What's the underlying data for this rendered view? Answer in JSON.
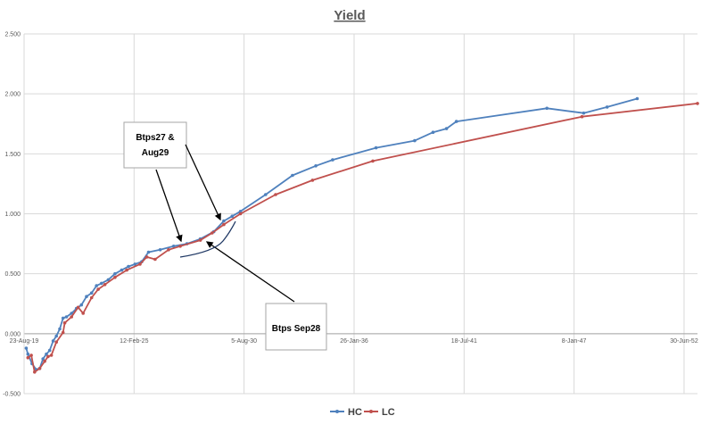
{
  "chart_data": {
    "type": "line",
    "title": "Yield",
    "xlabel": "",
    "ylabel": "",
    "ylim": [
      -0.5,
      2.5
    ],
    "yticks": [
      -0.5,
      0,
      0.5,
      1,
      1.5,
      2,
      2.5
    ],
    "ytick_labels": [
      "-0.500",
      "0.000",
      "0.500",
      "1.000",
      "1.500",
      "2.000",
      "2.500"
    ],
    "xlim": [
      "2019-08-23",
      "2053-03-01"
    ],
    "xticks": [
      "2019-08-23",
      "2025-02-12",
      "2030-08-05",
      "2036-01-26",
      "2041-07-18",
      "2047-01-08",
      "2052-06-30"
    ],
    "xtick_labels": [
      "23-Aug-19",
      "12-Feb-25",
      "5-Aug-30",
      "26-Jan-36",
      "18-Jul-41",
      "8-Jan-47",
      "30-Jun-52"
    ],
    "grid": true,
    "legend_position": "bottom",
    "series": [
      {
        "name": "HC",
        "color": "#4f81bd",
        "points": [
          [
            "2019-10-01",
            -0.12
          ],
          [
            "2019-11-01",
            -0.17
          ],
          [
            "2020-01-15",
            -0.25
          ],
          [
            "2020-04-01",
            -0.3
          ],
          [
            "2020-06-01",
            -0.29
          ],
          [
            "2020-08-01",
            -0.21
          ],
          [
            "2020-10-01",
            -0.17
          ],
          [
            "2020-12-01",
            -0.14
          ],
          [
            "2021-02-01",
            -0.06
          ],
          [
            "2021-04-01",
            -0.02
          ],
          [
            "2021-06-01",
            0.04
          ],
          [
            "2021-08-01",
            0.13
          ],
          [
            "2021-10-01",
            0.14
          ],
          [
            "2022-01-01",
            0.17
          ],
          [
            "2022-04-01",
            0.21
          ],
          [
            "2022-07-01",
            0.24
          ],
          [
            "2022-10-01",
            0.31
          ],
          [
            "2023-01-01",
            0.34
          ],
          [
            "2023-04-01",
            0.4
          ],
          [
            "2023-07-01",
            0.42
          ],
          [
            "2023-11-01",
            0.45
          ],
          [
            "2024-03-01",
            0.5
          ],
          [
            "2024-07-01",
            0.53
          ],
          [
            "2024-11-01",
            0.56
          ],
          [
            "2025-03-01",
            0.58
          ],
          [
            "2025-07-01",
            0.6
          ],
          [
            "2025-11-01",
            0.68
          ],
          [
            "2026-06-01",
            0.7
          ],
          [
            "2027-02-01",
            0.73
          ],
          [
            "2027-10-01",
            0.75
          ],
          [
            "2028-06-01",
            0.79
          ],
          [
            "2029-02-01",
            0.85
          ],
          [
            "2029-08-01",
            0.94
          ],
          [
            "2030-01-01",
            0.98
          ],
          [
            "2030-06-01",
            1.02
          ],
          [
            "2031-09-01",
            1.16
          ],
          [
            "2033-01-01",
            1.32
          ],
          [
            "2034-03-01",
            1.4
          ],
          [
            "2035-01-01",
            1.45
          ],
          [
            "2037-03-01",
            1.55
          ],
          [
            "2039-02-01",
            1.61
          ],
          [
            "2040-01-01",
            1.68
          ],
          [
            "2040-09-01",
            1.71
          ],
          [
            "2041-03-01",
            1.77
          ],
          [
            "2045-09-01",
            1.88
          ],
          [
            "2047-07-01",
            1.84
          ],
          [
            "2048-09-01",
            1.89
          ],
          [
            "2050-03-01",
            1.96
          ]
        ]
      },
      {
        "name": "LC",
        "color": "#c0504d",
        "points": [
          [
            "2019-11-01",
            -0.2
          ],
          [
            "2020-01-01",
            -0.18
          ],
          [
            "2020-03-01",
            -0.32
          ],
          [
            "2020-06-01",
            -0.29
          ],
          [
            "2020-09-01",
            -0.23
          ],
          [
            "2020-11-01",
            -0.19
          ],
          [
            "2021-01-01",
            -0.18
          ],
          [
            "2021-04-01",
            -0.07
          ],
          [
            "2021-08-01",
            0.01
          ],
          [
            "2021-09-01",
            0.09
          ],
          [
            "2022-01-01",
            0.14
          ],
          [
            "2022-05-01",
            0.22
          ],
          [
            "2022-08-01",
            0.17
          ],
          [
            "2023-01-01",
            0.3
          ],
          [
            "2023-05-01",
            0.37
          ],
          [
            "2023-09-01",
            0.41
          ],
          [
            "2024-03-01",
            0.47
          ],
          [
            "2024-10-01",
            0.53
          ],
          [
            "2025-06-01",
            0.58
          ],
          [
            "2025-10-01",
            0.64
          ],
          [
            "2026-03-01",
            0.62
          ],
          [
            "2026-11-01",
            0.7
          ],
          [
            "2027-06-01",
            0.73
          ],
          [
            "2028-06-01",
            0.78
          ],
          [
            "2029-01-01",
            0.84
          ],
          [
            "2029-08-01",
            0.91
          ],
          [
            "2030-06-01",
            1.0
          ],
          [
            "2032-03-01",
            1.16
          ],
          [
            "2034-01-01",
            1.28
          ],
          [
            "2037-01-01",
            1.44
          ],
          [
            "2047-06-01",
            1.81
          ],
          [
            "2053-03-01",
            1.92
          ]
        ]
      }
    ],
    "annotations": [
      {
        "id": "annot-btps27-aug29",
        "lines": [
          "Btps27 &",
          "Aug29"
        ]
      },
      {
        "id": "annot-btps-sep28",
        "lines": [
          "Btps Sep28"
        ]
      }
    ]
  }
}
